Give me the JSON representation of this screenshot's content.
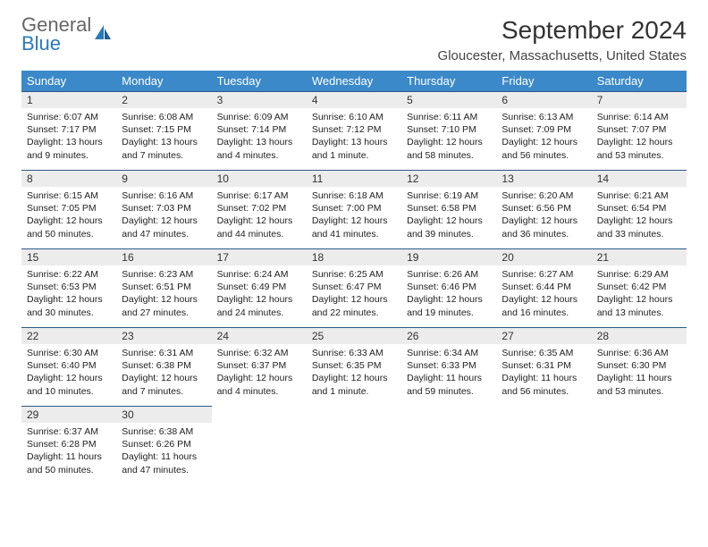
{
  "logo": {
    "top": "General",
    "bottom": "Blue"
  },
  "title": "September 2024",
  "location": "Gloucester, Massachusetts, United States",
  "colors": {
    "header_bg": "#3b89c9",
    "header_text": "#ffffff",
    "daynum_bg": "#ececec",
    "row_border": "#2a5a88",
    "logo_blue": "#2a7ab8"
  },
  "weekdays": [
    "Sunday",
    "Monday",
    "Tuesday",
    "Wednesday",
    "Thursday",
    "Friday",
    "Saturday"
  ],
  "days": [
    {
      "n": "1",
      "sr": "6:07 AM",
      "ss": "7:17 PM",
      "dl": "13 hours and 9 minutes."
    },
    {
      "n": "2",
      "sr": "6:08 AM",
      "ss": "7:15 PM",
      "dl": "13 hours and 7 minutes."
    },
    {
      "n": "3",
      "sr": "6:09 AM",
      "ss": "7:14 PM",
      "dl": "13 hours and 4 minutes."
    },
    {
      "n": "4",
      "sr": "6:10 AM",
      "ss": "7:12 PM",
      "dl": "13 hours and 1 minute."
    },
    {
      "n": "5",
      "sr": "6:11 AM",
      "ss": "7:10 PM",
      "dl": "12 hours and 58 minutes."
    },
    {
      "n": "6",
      "sr": "6:13 AM",
      "ss": "7:09 PM",
      "dl": "12 hours and 56 minutes."
    },
    {
      "n": "7",
      "sr": "6:14 AM",
      "ss": "7:07 PM",
      "dl": "12 hours and 53 minutes."
    },
    {
      "n": "8",
      "sr": "6:15 AM",
      "ss": "7:05 PM",
      "dl": "12 hours and 50 minutes."
    },
    {
      "n": "9",
      "sr": "6:16 AM",
      "ss": "7:03 PM",
      "dl": "12 hours and 47 minutes."
    },
    {
      "n": "10",
      "sr": "6:17 AM",
      "ss": "7:02 PM",
      "dl": "12 hours and 44 minutes."
    },
    {
      "n": "11",
      "sr": "6:18 AM",
      "ss": "7:00 PM",
      "dl": "12 hours and 41 minutes."
    },
    {
      "n": "12",
      "sr": "6:19 AM",
      "ss": "6:58 PM",
      "dl": "12 hours and 39 minutes."
    },
    {
      "n": "13",
      "sr": "6:20 AM",
      "ss": "6:56 PM",
      "dl": "12 hours and 36 minutes."
    },
    {
      "n": "14",
      "sr": "6:21 AM",
      "ss": "6:54 PM",
      "dl": "12 hours and 33 minutes."
    },
    {
      "n": "15",
      "sr": "6:22 AM",
      "ss": "6:53 PM",
      "dl": "12 hours and 30 minutes."
    },
    {
      "n": "16",
      "sr": "6:23 AM",
      "ss": "6:51 PM",
      "dl": "12 hours and 27 minutes."
    },
    {
      "n": "17",
      "sr": "6:24 AM",
      "ss": "6:49 PM",
      "dl": "12 hours and 24 minutes."
    },
    {
      "n": "18",
      "sr": "6:25 AM",
      "ss": "6:47 PM",
      "dl": "12 hours and 22 minutes."
    },
    {
      "n": "19",
      "sr": "6:26 AM",
      "ss": "6:46 PM",
      "dl": "12 hours and 19 minutes."
    },
    {
      "n": "20",
      "sr": "6:27 AM",
      "ss": "6:44 PM",
      "dl": "12 hours and 16 minutes."
    },
    {
      "n": "21",
      "sr": "6:29 AM",
      "ss": "6:42 PM",
      "dl": "12 hours and 13 minutes."
    },
    {
      "n": "22",
      "sr": "6:30 AM",
      "ss": "6:40 PM",
      "dl": "12 hours and 10 minutes."
    },
    {
      "n": "23",
      "sr": "6:31 AM",
      "ss": "6:38 PM",
      "dl": "12 hours and 7 minutes."
    },
    {
      "n": "24",
      "sr": "6:32 AM",
      "ss": "6:37 PM",
      "dl": "12 hours and 4 minutes."
    },
    {
      "n": "25",
      "sr": "6:33 AM",
      "ss": "6:35 PM",
      "dl": "12 hours and 1 minute."
    },
    {
      "n": "26",
      "sr": "6:34 AM",
      "ss": "6:33 PM",
      "dl": "11 hours and 59 minutes."
    },
    {
      "n": "27",
      "sr": "6:35 AM",
      "ss": "6:31 PM",
      "dl": "11 hours and 56 minutes."
    },
    {
      "n": "28",
      "sr": "6:36 AM",
      "ss": "6:30 PM",
      "dl": "11 hours and 53 minutes."
    },
    {
      "n": "29",
      "sr": "6:37 AM",
      "ss": "6:28 PM",
      "dl": "11 hours and 50 minutes."
    },
    {
      "n": "30",
      "sr": "6:38 AM",
      "ss": "6:26 PM",
      "dl": "11 hours and 47 minutes."
    }
  ],
  "labels": {
    "sunrise": "Sunrise:",
    "sunset": "Sunset:",
    "daylight": "Daylight:"
  },
  "layout": {
    "first_day_col": 0,
    "rows": 5,
    "cols": 7
  }
}
